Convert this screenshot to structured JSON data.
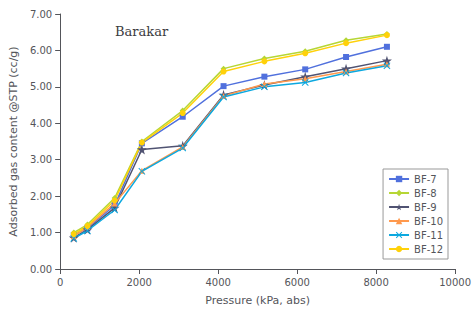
{
  "chart_data": {
    "type": "line",
    "title": "Barakar",
    "xlabel": "Pressure (kPa, abs)",
    "ylabel": "Adsorbed gas content @STP (cc/g)",
    "xlim": [
      0,
      10000
    ],
    "ylim": [
      0,
      7
    ],
    "xticks": [
      0,
      2000,
      4000,
      6000,
      8000,
      10000
    ],
    "yticks": [
      {
        "value": 0,
        "label": "0.00"
      },
      {
        "value": 1,
        "label": "1.00"
      },
      {
        "value": 2,
        "label": "2.00"
      },
      {
        "value": 3,
        "label": "3.00"
      },
      {
        "value": 4,
        "label": "4.00"
      },
      {
        "value": 5,
        "label": "5.00"
      },
      {
        "value": 6,
        "label": "6.00"
      },
      {
        "value": 7,
        "label": "7.00"
      }
    ],
    "grid": false,
    "legend": "right",
    "series": [
      {
        "name": "BF-7",
        "marker": "square",
        "x": [
          345,
          690,
          1379,
          2069,
          3103,
          4137,
          5171,
          6205,
          7239,
          8274
        ],
        "values": [
          0.93,
          1.12,
          1.75,
          3.45,
          4.18,
          5.02,
          5.28,
          5.48,
          5.82,
          6.1
        ]
      },
      {
        "name": "BF-8",
        "marker": "diamond",
        "x": [
          345,
          690,
          1379,
          2069,
          3103,
          4137,
          5171,
          6205,
          7239,
          8274
        ],
        "values": [
          1.0,
          1.22,
          1.95,
          3.5,
          4.35,
          5.5,
          5.78,
          5.98,
          6.28,
          6.45
        ]
      },
      {
        "name": "BF-9",
        "marker": "star",
        "x": [
          345,
          690,
          1379,
          2069,
          3103,
          4137,
          5171,
          6205,
          7239,
          8274
        ],
        "values": [
          0.86,
          1.08,
          1.68,
          3.28,
          3.38,
          4.78,
          5.05,
          5.28,
          5.5,
          5.72
        ]
      },
      {
        "name": "BF-10",
        "marker": "triangle",
        "x": [
          345,
          690,
          1379,
          2069,
          3103,
          4137,
          5171,
          6205,
          7239,
          8274
        ],
        "values": [
          0.9,
          1.15,
          1.8,
          2.7,
          3.35,
          4.75,
          5.08,
          5.22,
          5.42,
          5.62
        ]
      },
      {
        "name": "BF-11",
        "marker": "x",
        "x": [
          345,
          690,
          1379,
          2069,
          3103,
          4137,
          5171,
          6205,
          7239,
          8274
        ],
        "values": [
          0.84,
          1.05,
          1.62,
          2.68,
          3.32,
          4.72,
          5.0,
          5.12,
          5.38,
          5.58
        ]
      },
      {
        "name": "BF-12",
        "marker": "circle",
        "x": [
          345,
          690,
          1379,
          2069,
          3103,
          4137,
          5171,
          6205,
          7239,
          8274
        ],
        "values": [
          0.96,
          1.18,
          1.88,
          3.47,
          4.28,
          5.42,
          5.7,
          5.92,
          6.2,
          6.42
        ]
      }
    ]
  }
}
